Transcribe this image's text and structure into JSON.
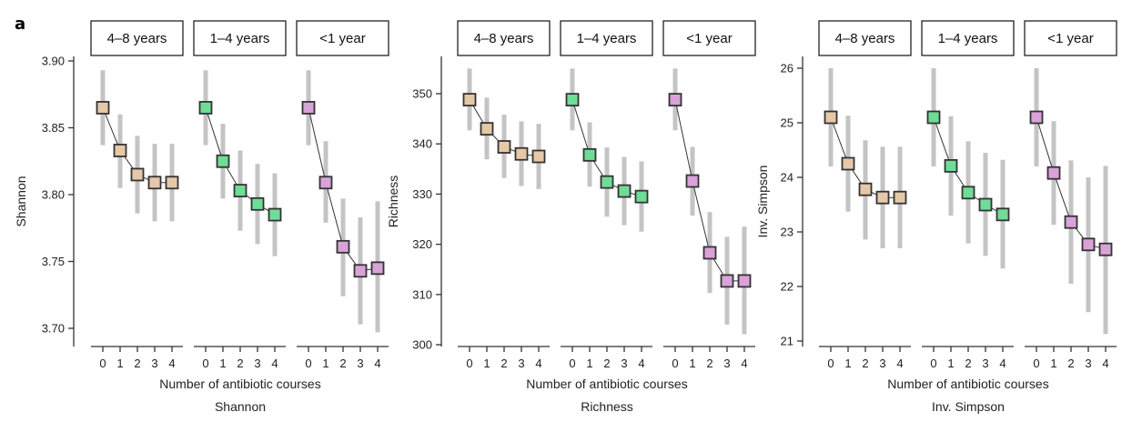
{
  "figure": {
    "panel_letter": "a"
  },
  "colors": {
    "4–8 years": "#e6c8a8",
    "1–4 years": "#6fdc98",
    "<1 year": "#d9a2d8",
    "ci": "#c4c4c4",
    "line": "#333333"
  },
  "chart_data": [
    {
      "type": "line",
      "metric": "Shannon",
      "title": "Shannon",
      "xlabel": "Number of antibiotic courses",
      "ylabel": "Shannon",
      "ylim": [
        3.69,
        3.905
      ],
      "yticks": [
        3.7,
        3.75,
        3.8,
        3.85,
        3.9
      ],
      "ytick_labels": [
        "3.70",
        "3.75",
        "3.80",
        "3.85",
        "3.90"
      ],
      "x": [
        0,
        1,
        2,
        3,
        4
      ],
      "xtick_labels": [
        "0",
        "1",
        "2",
        "3",
        "4"
      ],
      "facets": [
        {
          "label": "4–8 years",
          "values": [
            3.865,
            3.833,
            3.815,
            3.809,
            3.809
          ],
          "ci_low": [
            3.837,
            3.805,
            3.786,
            3.78,
            3.78
          ],
          "ci_high": [
            3.893,
            3.86,
            3.844,
            3.838,
            3.838
          ]
        },
        {
          "label": "1–4 years",
          "values": [
            3.865,
            3.825,
            3.803,
            3.793,
            3.785
          ],
          "ci_low": [
            3.837,
            3.797,
            3.773,
            3.763,
            3.754
          ],
          "ci_high": [
            3.893,
            3.853,
            3.833,
            3.823,
            3.816
          ]
        },
        {
          "label": "<1 year",
          "values": [
            3.865,
            3.809,
            3.761,
            3.743,
            3.745
          ],
          "ci_low": [
            3.837,
            3.779,
            3.724,
            3.703,
            3.697
          ],
          "ci_high": [
            3.893,
            3.84,
            3.797,
            3.783,
            3.795
          ]
        }
      ]
    },
    {
      "type": "line",
      "metric": "Richness",
      "title": "Richness",
      "xlabel": "Number of antibiotic courses",
      "ylabel": "Richness",
      "ylim": [
        300,
        357
      ],
      "yticks": [
        300,
        310,
        320,
        330,
        340,
        350
      ],
      "ytick_labels": [
        "300",
        "310",
        "320",
        "330",
        "340",
        "350"
      ],
      "x": [
        0,
        1,
        2,
        3,
        4
      ],
      "xtick_labels": [
        "0",
        "1",
        "2",
        "3",
        "4"
      ],
      "facets": [
        {
          "label": "4–8 years",
          "values": [
            348.8,
            343.0,
            339.4,
            338.0,
            337.5
          ],
          "ci_low": [
            342.7,
            336.9,
            333.2,
            331.6,
            331.0
          ],
          "ci_high": [
            355.0,
            349.2,
            345.8,
            344.5,
            344.0
          ]
        },
        {
          "label": "1–4 years",
          "values": [
            348.8,
            337.8,
            332.4,
            330.6,
            329.5
          ],
          "ci_low": [
            342.7,
            331.5,
            325.5,
            323.8,
            322.5
          ],
          "ci_high": [
            355.0,
            344.3,
            339.3,
            337.4,
            336.5
          ]
        },
        {
          "label": "<1 year",
          "values": [
            348.8,
            332.6,
            318.3,
            312.7,
            312.7
          ],
          "ci_low": [
            342.7,
            325.7,
            310.3,
            304.0,
            302.1
          ],
          "ci_high": [
            355.0,
            339.4,
            326.4,
            321.5,
            323.5
          ]
        }
      ]
    },
    {
      "type": "line",
      "metric": "Inv. Simpson",
      "title": "Inv. Simpson",
      "xlabel": "Number of antibiotic courses",
      "ylabel": "Inv. Simpson",
      "ylim": [
        20.97,
        26.2
      ],
      "yticks": [
        21,
        22,
        23,
        24,
        25,
        26
      ],
      "ytick_labels": [
        "21",
        "22",
        "23",
        "24",
        "25",
        "26"
      ],
      "x": [
        0,
        1,
        2,
        3,
        4
      ],
      "xtick_labels": [
        "0",
        "1",
        "2",
        "3",
        "4"
      ],
      "facets": [
        {
          "label": "4–8 years",
          "values": [
            25.1,
            24.25,
            23.78,
            23.63,
            23.63
          ],
          "ci_low": [
            24.2,
            23.37,
            22.86,
            22.7,
            22.7
          ],
          "ci_high": [
            26.0,
            25.13,
            24.68,
            24.56,
            24.56
          ]
        },
        {
          "label": "1–4 years",
          "values": [
            25.1,
            24.21,
            23.72,
            23.5,
            23.32
          ],
          "ci_low": [
            24.2,
            23.3,
            22.79,
            22.56,
            22.33
          ],
          "ci_high": [
            26.0,
            25.12,
            24.66,
            24.45,
            24.32
          ]
        },
        {
          "label": "<1 year",
          "values": [
            25.1,
            24.08,
            23.18,
            22.77,
            22.68
          ],
          "ci_low": [
            24.2,
            23.13,
            22.05,
            21.53,
            21.13
          ],
          "ci_high": [
            26.0,
            25.03,
            24.31,
            24.0,
            24.21
          ]
        }
      ]
    }
  ]
}
